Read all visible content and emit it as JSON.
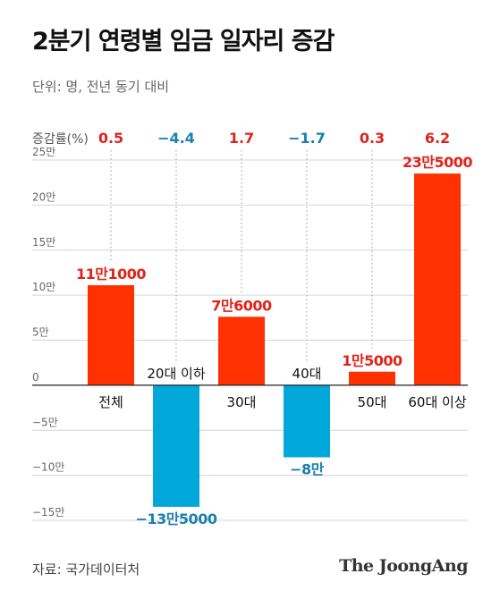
{
  "title": "2분기 연령별 임금 일자리 증감",
  "unit_note": "단위: 명, 전년 동기 대비",
  "source": "자료: 국가데이터처",
  "brand": "The JoongAng",
  "colors": {
    "positive": "#ff3100",
    "negative": "#00a7d9",
    "positive_rate": "#e0241a",
    "negative_rate": "#1b7fb0",
    "grid": "#d6d6d6",
    "dotted": "#9a9a9a",
    "axis_label": "#666666"
  },
  "chart_data": {
    "type": "bar",
    "title": "2분기 연령별 임금 일자리 증감",
    "categories": [
      "전체",
      "20대 이하",
      "30대",
      "40대",
      "50대",
      "60대 이상"
    ],
    "values": [
      111000,
      -135000,
      76000,
      -80000,
      15000,
      235000
    ],
    "value_labels": [
      "11만1000",
      "−13만5000",
      "7만6000",
      "−8만",
      "1만5000",
      "23만5000"
    ],
    "rate_header": "증감률(%)",
    "rates": [
      0.5,
      -4.4,
      1.7,
      -1.7,
      0.3,
      6.2
    ],
    "rate_labels": [
      "0.5",
      "−4.4",
      "1.7",
      "−1.7",
      "0.3",
      "6.2"
    ],
    "yticks": [
      250000,
      200000,
      150000,
      100000,
      50000,
      0,
      -50000,
      -100000,
      -150000
    ],
    "ytick_labels": [
      "25만",
      "20만",
      "15만",
      "10만",
      "5만",
      "0",
      "−5만",
      "−10만",
      "−15만"
    ],
    "ylim": [
      -150000,
      250000
    ],
    "grid": true
  }
}
